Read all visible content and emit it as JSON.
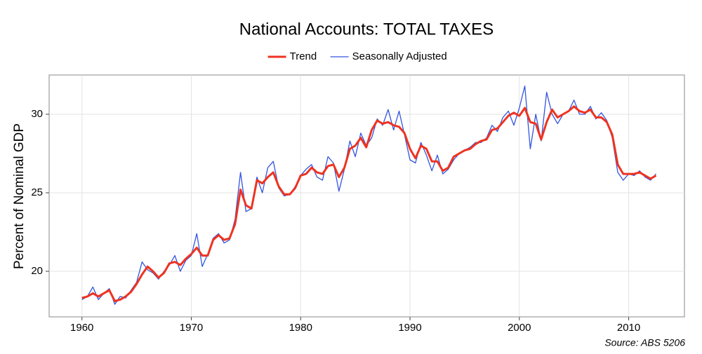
{
  "chart_data": {
    "type": "line",
    "title": "National Accounts: TOTAL TAXES",
    "y_label": "Percent of Nominal GDP",
    "source": "Source: ABS 5206",
    "legend": "top",
    "grid": true,
    "x": [
      1960,
      1960.5,
      1961,
      1961.5,
      1962,
      1962.5,
      1963,
      1963.5,
      1964,
      1964.5,
      1965,
      1965.5,
      1966,
      1966.5,
      1967,
      1967.5,
      1968,
      1968.5,
      1969,
      1969.5,
      1970,
      1970.5,
      1971,
      1971.5,
      1972,
      1972.5,
      1973,
      1973.5,
      1974,
      1974.5,
      1975,
      1975.5,
      1976,
      1976.5,
      1977,
      1977.5,
      1978,
      1978.5,
      1979,
      1979.5,
      1980,
      1980.5,
      1981,
      1981.5,
      1982,
      1982.5,
      1983,
      1983.5,
      1984,
      1984.5,
      1985,
      1985.5,
      1986,
      1986.5,
      1987,
      1987.5,
      1988,
      1988.5,
      1989,
      1989.5,
      1990,
      1990.5,
      1991,
      1991.5,
      1992,
      1992.5,
      1993,
      1993.5,
      1994,
      1994.5,
      1995,
      1995.5,
      1996,
      1996.5,
      1997,
      1997.5,
      1998,
      1998.5,
      1999,
      1999.5,
      2000,
      2000.5,
      2001,
      2001.5,
      2002,
      2002.5,
      2003,
      2003.5,
      2004,
      2004.5,
      2005,
      2005.5,
      2006,
      2006.5,
      2007,
      2007.5,
      2008,
      2008.5,
      2009,
      2009.5,
      2010,
      2010.5,
      2011,
      2011.5,
      2012,
      2012.5
    ],
    "series": [
      {
        "name": "Trend",
        "color": "#ee3322",
        "width": 3,
        "values": [
          18.3,
          18.4,
          18.6,
          18.4,
          18.6,
          18.8,
          18.1,
          18.2,
          18.4,
          18.7,
          19.2,
          19.8,
          20.3,
          20.0,
          19.6,
          19.9,
          20.5,
          20.6,
          20.4,
          20.8,
          21.1,
          21.5,
          21.0,
          21.0,
          22.0,
          22.3,
          22.0,
          22.1,
          23.0,
          25.2,
          24.2,
          24.0,
          25.8,
          25.6,
          26.0,
          26.3,
          25.4,
          24.9,
          24.9,
          25.3,
          26.1,
          26.2,
          26.6,
          26.3,
          26.2,
          26.7,
          26.8,
          26.0,
          26.6,
          27.8,
          28.0,
          28.5,
          27.9,
          29.0,
          29.6,
          29.4,
          29.5,
          29.3,
          29.2,
          28.8,
          27.8,
          27.2,
          28.0,
          27.8,
          27.0,
          27.0,
          26.4,
          26.6,
          27.3,
          27.5,
          27.7,
          27.8,
          28.1,
          28.3,
          28.4,
          29.0,
          29.1,
          29.5,
          29.9,
          30.1,
          29.9,
          30.4,
          29.5,
          29.4,
          28.4,
          29.5,
          30.3,
          29.8,
          30.0,
          30.2,
          30.5,
          30.2,
          30.1,
          30.3,
          29.8,
          29.8,
          29.5,
          28.7,
          26.8,
          26.2,
          26.2,
          26.2,
          26.3,
          26.1,
          25.9,
          26.1
        ]
      },
      {
        "name": "Seasonally Adjusted",
        "color": "#3355dd",
        "width": 1.3,
        "values": [
          18.2,
          18.4,
          19.0,
          18.2,
          18.6,
          18.9,
          17.9,
          18.4,
          18.3,
          18.8,
          19.3,
          20.6,
          20.1,
          19.9,
          19.5,
          20.0,
          20.4,
          21.0,
          20.0,
          20.7,
          21.0,
          22.4,
          20.3,
          21.1,
          22.1,
          22.4,
          21.8,
          22.0,
          23.3,
          26.3,
          23.8,
          24.0,
          26.0,
          25.0,
          26.6,
          27.0,
          25.3,
          24.8,
          24.9,
          25.4,
          26.1,
          26.5,
          26.8,
          26.0,
          25.8,
          27.3,
          26.9,
          25.1,
          26.5,
          28.3,
          27.3,
          28.8,
          28.0,
          28.5,
          29.7,
          29.3,
          30.3,
          29.0,
          30.2,
          28.7,
          27.1,
          26.9,
          28.2,
          27.4,
          26.4,
          27.4,
          26.2,
          26.5,
          27.1,
          27.5,
          27.7,
          27.9,
          28.2,
          28.2,
          28.5,
          29.3,
          28.9,
          29.8,
          30.2,
          29.3,
          30.4,
          31.8,
          27.8,
          30.0,
          28.3,
          31.4,
          30.0,
          29.4,
          30.0,
          30.2,
          30.9,
          30.0,
          30.0,
          30.5,
          29.7,
          30.1,
          29.6,
          28.5,
          26.3,
          25.8,
          26.2,
          26.1,
          26.4,
          26.0,
          25.8,
          26.2
        ]
      }
    ],
    "xlim": [
      1957,
      2015.1
    ],
    "xticks": [
      1960,
      1970,
      1980,
      1990,
      2000,
      2010
    ],
    "ylim": [
      17.1,
      32.5
    ],
    "yticks": [
      20,
      25,
      30
    ]
  }
}
